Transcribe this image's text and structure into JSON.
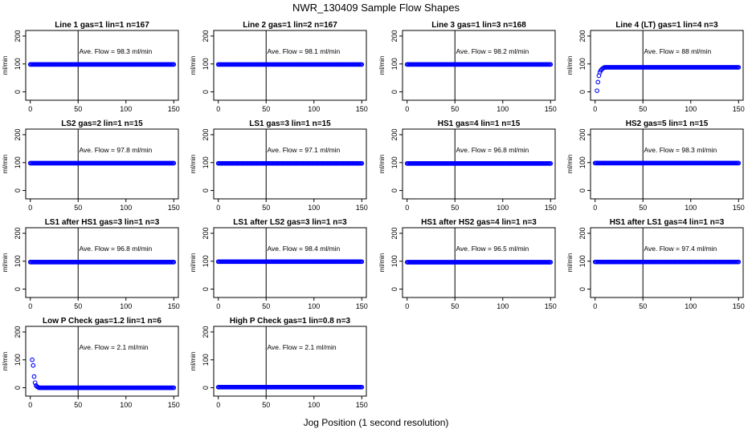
{
  "figure": {
    "title": "NWR_130409  Sample Flow Shapes",
    "xlabel": "Jog Position (1 second resolution)"
  },
  "chart_data": [
    {
      "type": "scatter",
      "title": "Line 1 gas=1 lin=1 n=167",
      "ylabel": "ml/min",
      "xlim": [
        0,
        150
      ],
      "ylim": [
        -30,
        220
      ],
      "xticks": [
        0,
        50,
        100,
        150
      ],
      "yticks": [
        0,
        100,
        200
      ],
      "vline": 50,
      "annotation": "Ave. Flow =  98.3  ml/min",
      "shape": "flat",
      "level": 98.3,
      "series": [
        {
          "color": "#0000ff"
        }
      ]
    },
    {
      "type": "scatter",
      "title": "Line 2 gas=1 lin=2 n=167",
      "ylabel": "ml/min",
      "xlim": [
        0,
        150
      ],
      "ylim": [
        -30,
        220
      ],
      "xticks": [
        0,
        50,
        100,
        150
      ],
      "yticks": [
        0,
        100,
        200
      ],
      "vline": 50,
      "annotation": "Ave. Flow =  98.1  ml/min",
      "shape": "flat",
      "level": 98.1,
      "series": [
        {
          "color": "#0000ff"
        }
      ]
    },
    {
      "type": "scatter",
      "title": "Line 3 gas=1 lin=3 n=168",
      "ylabel": "ml/min",
      "xlim": [
        0,
        150
      ],
      "ylim": [
        -30,
        220
      ],
      "xticks": [
        0,
        50,
        100,
        150
      ],
      "yticks": [
        0,
        100,
        200
      ],
      "vline": 50,
      "annotation": "Ave. Flow =  98.2  ml/min",
      "shape": "flat",
      "level": 98.2,
      "series": [
        {
          "color": "#0000ff"
        }
      ]
    },
    {
      "type": "scatter",
      "title": "Line 4 (LT) gas=1 lin=4 n=3",
      "ylabel": "ml/min",
      "xlim": [
        0,
        150
      ],
      "ylim": [
        -30,
        220
      ],
      "xticks": [
        0,
        50,
        100,
        150
      ],
      "yticks": [
        0,
        100,
        200
      ],
      "vline": 50,
      "annotation": "Ave. Flow =  88  ml/min",
      "shape": "rise",
      "level": 88,
      "series": [
        {
          "color": "#0000ff"
        }
      ]
    },
    {
      "type": "scatter",
      "title": "LS2 gas=2 lin=1 n=15",
      "ylabel": "ml/min",
      "xlim": [
        0,
        150
      ],
      "ylim": [
        -30,
        220
      ],
      "xticks": [
        0,
        50,
        100,
        150
      ],
      "yticks": [
        0,
        100,
        200
      ],
      "vline": 50,
      "annotation": "Ave. Flow =  97.8  ml/min",
      "shape": "flat",
      "level": 97.8,
      "series": [
        {
          "color": "#0000ff"
        }
      ]
    },
    {
      "type": "scatter",
      "title": "LS1 gas=3 lin=1 n=15",
      "ylabel": "ml/min",
      "xlim": [
        0,
        150
      ],
      "ylim": [
        -30,
        220
      ],
      "xticks": [
        0,
        50,
        100,
        150
      ],
      "yticks": [
        0,
        100,
        200
      ],
      "vline": 50,
      "annotation": "Ave. Flow =  97.1  ml/min",
      "shape": "flat",
      "level": 97.1,
      "series": [
        {
          "color": "#0000ff"
        }
      ]
    },
    {
      "type": "scatter",
      "title": "HS1 gas=4 lin=1 n=15",
      "ylabel": "ml/min",
      "xlim": [
        0,
        150
      ],
      "ylim": [
        -30,
        220
      ],
      "xticks": [
        0,
        50,
        100,
        150
      ],
      "yticks": [
        0,
        100,
        200
      ],
      "vline": 50,
      "annotation": "Ave. Flow =  96.8  ml/min",
      "shape": "flat",
      "level": 96.8,
      "series": [
        {
          "color": "#0000ff"
        }
      ]
    },
    {
      "type": "scatter",
      "title": "HS2 gas=5 lin=1 n=15",
      "ylabel": "ml/min",
      "xlim": [
        0,
        150
      ],
      "ylim": [
        -30,
        220
      ],
      "xticks": [
        0,
        50,
        100,
        150
      ],
      "yticks": [
        0,
        100,
        200
      ],
      "vline": 50,
      "annotation": "Ave. Flow =  98.3  ml/min",
      "shape": "flat",
      "level": 98.3,
      "series": [
        {
          "color": "#0000ff"
        }
      ]
    },
    {
      "type": "scatter",
      "title": "LS1 after HS1 gas=3 lin=1 n=3",
      "ylabel": "ml/min",
      "xlim": [
        0,
        150
      ],
      "ylim": [
        -30,
        220
      ],
      "xticks": [
        0,
        50,
        100,
        150
      ],
      "yticks": [
        0,
        100,
        200
      ],
      "vline": 50,
      "annotation": "Ave. Flow =  96.8  ml/min",
      "shape": "flat",
      "level": 96.8,
      "series": [
        {
          "color": "#0000ff"
        }
      ]
    },
    {
      "type": "scatter",
      "title": "LS1 after LS2 gas=3 lin=1 n=3",
      "ylabel": "ml/min",
      "xlim": [
        0,
        150
      ],
      "ylim": [
        -30,
        220
      ],
      "xticks": [
        0,
        50,
        100,
        150
      ],
      "yticks": [
        0,
        100,
        200
      ],
      "vline": 50,
      "annotation": "Ave. Flow =  98.4  ml/min",
      "shape": "flat",
      "level": 98.4,
      "series": [
        {
          "color": "#0000ff"
        }
      ]
    },
    {
      "type": "scatter",
      "title": "HS1 after HS2 gas=4 lin=1 n=3",
      "ylabel": "ml/min",
      "xlim": [
        0,
        150
      ],
      "ylim": [
        -30,
        220
      ],
      "xticks": [
        0,
        50,
        100,
        150
      ],
      "yticks": [
        0,
        100,
        200
      ],
      "vline": 50,
      "annotation": "Ave. Flow =  96.5  ml/min",
      "shape": "flat",
      "level": 96.5,
      "series": [
        {
          "color": "#0000ff"
        }
      ]
    },
    {
      "type": "scatter",
      "title": "HS1 after LS1 gas=4 lin=1 n=3",
      "ylabel": "ml/min",
      "xlim": [
        0,
        150
      ],
      "ylim": [
        -30,
        220
      ],
      "xticks": [
        0,
        50,
        100,
        150
      ],
      "yticks": [
        0,
        100,
        200
      ],
      "vline": 50,
      "annotation": "Ave. Flow =  97.4  ml/min",
      "shape": "flat",
      "level": 97.4,
      "series": [
        {
          "color": "#0000ff"
        }
      ]
    },
    {
      "type": "scatter",
      "title": "Low P Check gas=1.2 lin=1 n=6",
      "ylabel": "ml/min",
      "xlim": [
        0,
        150
      ],
      "ylim": [
        -30,
        220
      ],
      "xticks": [
        0,
        50,
        100,
        150
      ],
      "yticks": [
        0,
        100,
        200
      ],
      "vline": 50,
      "annotation": "Ave. Flow =  2.1  ml/min",
      "shape": "decay",
      "level": 2.1,
      "series": [
        {
          "color": "#0000ff"
        }
      ]
    },
    {
      "type": "scatter",
      "title": "High P Check gas=1 lin=0.8 n=3",
      "ylabel": "ml/min",
      "xlim": [
        0,
        150
      ],
      "ylim": [
        -30,
        220
      ],
      "xticks": [
        0,
        50,
        100,
        150
      ],
      "yticks": [
        0,
        100,
        200
      ],
      "vline": 50,
      "annotation": "Ave. Flow =  2.1  ml/min",
      "shape": "flat",
      "level": 2.1,
      "series": [
        {
          "color": "#0000ff"
        }
      ]
    }
  ]
}
